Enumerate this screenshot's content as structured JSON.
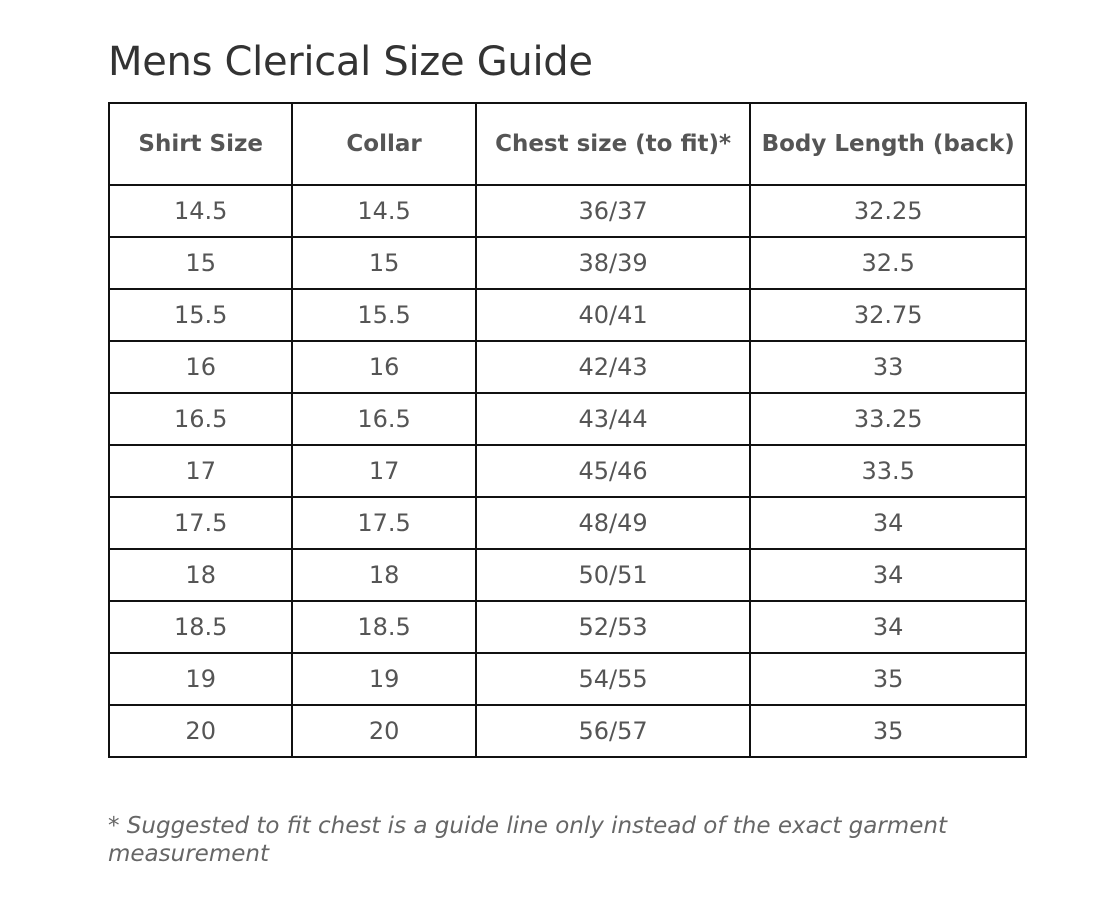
{
  "title": "Mens Clerical Size Guide",
  "table": {
    "headers": [
      "Shirt Size",
      "Collar",
      "Chest size (to fit)*",
      "Body Length (back)"
    ],
    "rows": [
      [
        "14.5",
        "14.5",
        "36/37",
        "32.25"
      ],
      [
        "15",
        "15",
        "38/39",
        "32.5"
      ],
      [
        "15.5",
        "15.5",
        "40/41",
        "32.75"
      ],
      [
        "16",
        "16",
        "42/43",
        "33"
      ],
      [
        "16.5",
        "16.5",
        "43/44",
        "33.25"
      ],
      [
        "17",
        "17",
        "45/46",
        "33.5"
      ],
      [
        "17.5",
        "17.5",
        "48/49",
        "34"
      ],
      [
        "18",
        "18",
        "50/51",
        "34"
      ],
      [
        "18.5",
        "18.5",
        "52/53",
        "34"
      ],
      [
        "19",
        "19",
        "54/55",
        "35"
      ],
      [
        "20",
        "20",
        "56/57",
        "35"
      ]
    ]
  },
  "footnote": "* Suggested to fit chest is a guide line only instead of the exact garment measurement",
  "colors": {
    "title": "#333333",
    "text": "#555555",
    "border": "#111111"
  }
}
